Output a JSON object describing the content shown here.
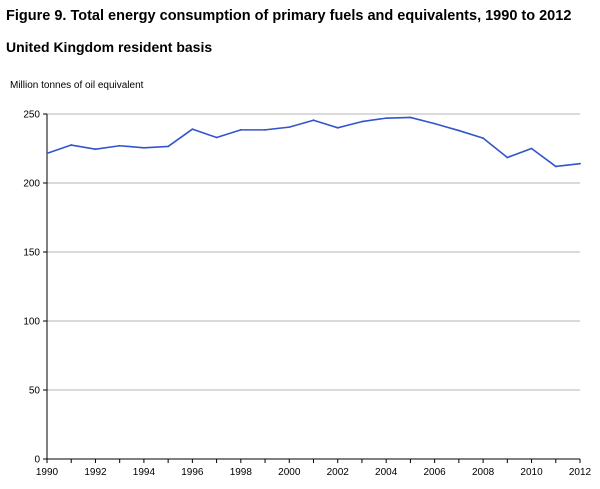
{
  "title": "Figure 9. Total energy consumption of primary fuels and equivalents, 1990 to 2012",
  "subtitle": "United Kingdom resident basis",
  "chart_data": {
    "type": "line",
    "title": "Figure 9. Total energy consumption of primary fuels and equivalents, 1990 to 2012",
    "subtitle": "United Kingdom resident basis",
    "ylabel": "Million tonnes of oil equivalent",
    "xlabel": "",
    "x": [
      1990,
      1991,
      1992,
      1993,
      1994,
      1995,
      1996,
      1997,
      1998,
      1999,
      2000,
      2001,
      2002,
      2003,
      2004,
      2005,
      2006,
      2007,
      2008,
      2009,
      2010,
      2011,
      2012
    ],
    "series": [
      {
        "values": [
          221.5,
          227.5,
          224.5,
          227,
          225.5,
          226.5,
          239,
          233,
          238.5,
          238.5,
          240.5,
          245.5,
          240,
          244.5,
          247,
          247.5,
          243,
          238,
          232.5,
          218.5,
          225,
          212,
          214
        ],
        "color": "#3355cc"
      }
    ],
    "xlim": [
      1990,
      2012
    ],
    "ylim": [
      0,
      250
    ],
    "xticks": [
      "1990",
      "1992",
      "1994",
      "1996",
      "1998",
      "2000",
      "2002",
      "2004",
      "2006",
      "2008",
      "2010",
      "2012"
    ],
    "yticks": [
      "0",
      "50",
      "100",
      "150",
      "200",
      "250"
    ],
    "grid": "horizontal",
    "legend": "none"
  }
}
